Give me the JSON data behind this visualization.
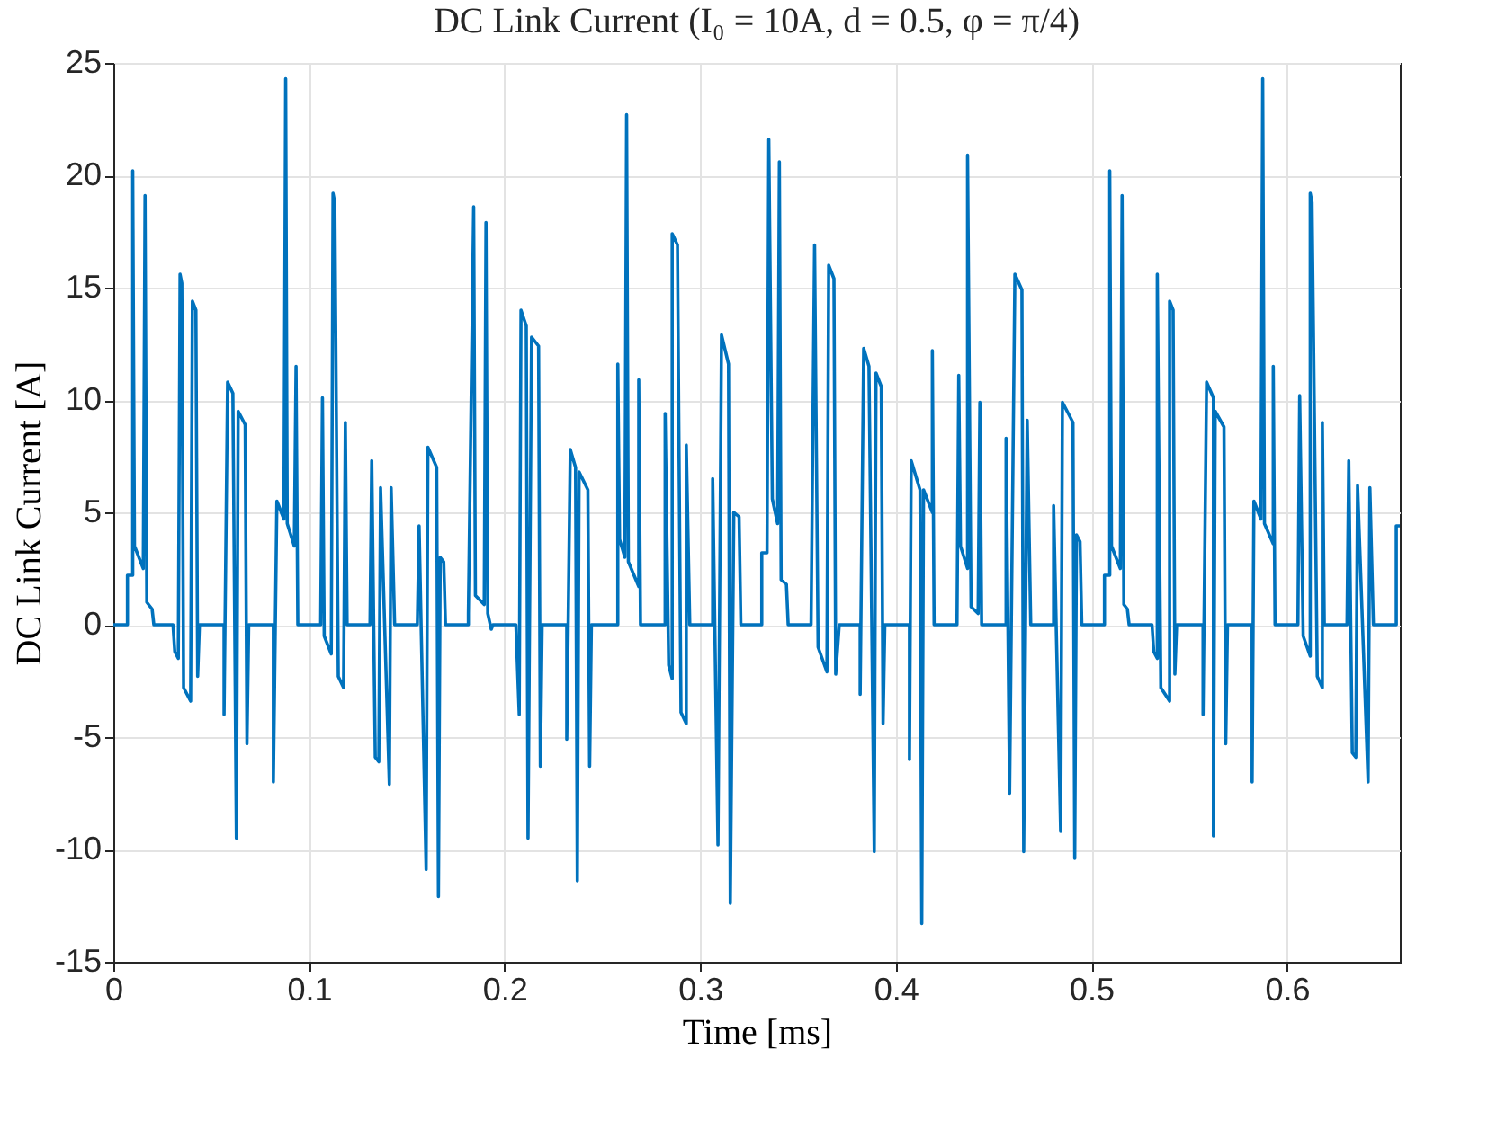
{
  "chart_data": {
    "type": "line",
    "title": "DC Link Current (I₀ = 10A, d = 0.5, φ = π/4)",
    "xlabel": "Time [ms]",
    "ylabel": "DC Link Current [A]",
    "xlim": [
      0,
      0.6577
    ],
    "ylim": [
      -15,
      25
    ],
    "xticks": [
      0,
      0.1,
      0.2,
      0.3,
      0.4,
      0.5,
      0.6
    ],
    "yticks": [
      -15,
      -10,
      -5,
      0,
      5,
      10,
      15,
      20,
      25
    ],
    "grid": true,
    "series": [
      {
        "color": "#0072bd",
        "x": [
          0,
          0.0072,
          0.0072,
          0.0099,
          0.0099,
          0.0108,
          0.0153,
          0.0162,
          0.0171,
          0.0198,
          0.0207,
          0.0305,
          0.0314,
          0.0332,
          0.0341,
          0.035,
          0.0359,
          0.0395,
          0.0404,
          0.0422,
          0.0431,
          0.044,
          0.0566,
          0.0566,
          0.0584,
          0.0611,
          0.0629,
          0.0638,
          0.0674,
          0.0683,
          0.0692,
          0.0818,
          0.0818,
          0.0836,
          0.0872,
          0.0881,
          0.0889,
          0.0925,
          0.0934,
          0.0943,
          0.106,
          0.1069,
          0.1078,
          0.1114,
          0.1123,
          0.1132,
          0.115,
          0.1177,
          0.1186,
          0.1195,
          0.1312,
          0.1321,
          0.1339,
          0.1357,
          0.1366,
          0.1411,
          0.142,
          0.1438,
          0.1554,
          0.1563,
          0.1599,
          0.1608,
          0.1653,
          0.1662,
          0.1671,
          0.1689,
          0.1698,
          0.1815,
          0.1815,
          0.1842,
          0.1851,
          0.1896,
          0.1905,
          0.1914,
          0.1932,
          0.1941,
          0.2058,
          0.2075,
          0.2084,
          0.2111,
          0.212,
          0.2138,
          0.2174,
          0.2183,
          0.2192,
          0.2318,
          0.2318,
          0.2336,
          0.2363,
          0.2372,
          0.2381,
          0.2426,
          0.2435,
          0.2444,
          0.2579,
          0.2579,
          0.2588,
          0.2615,
          0.2624,
          0.2633,
          0.2686,
          0.2686,
          0.2695,
          0.2821,
          0.2821,
          0.2839,
          0.2857,
          0.2857,
          0.2884,
          0.2902,
          0.2929,
          0.2929,
          0.2947,
          0.3064,
          0.3064,
          0.3091,
          0.3109,
          0.3145,
          0.3154,
          0.3172,
          0.3199,
          0.3208,
          0.3315,
          0.3315,
          0.3342,
          0.3351,
          0.3369,
          0.3396,
          0.3405,
          0.3414,
          0.3441,
          0.345,
          0.3567,
          0.3585,
          0.3603,
          0.3648,
          0.3657,
          0.3684,
          0.3693,
          0.3711,
          0.3818,
          0.3818,
          0.3836,
          0.3863,
          0.389,
          0.3899,
          0.3926,
          0.3935,
          0.3944,
          0.407,
          0.407,
          0.4079,
          0.4124,
          0.4133,
          0.4142,
          0.4187,
          0.4187,
          0.4196,
          0.4313,
          0.4322,
          0.4331,
          0.4367,
          0.4367,
          0.4385,
          0.4421,
          0.443,
          0.4439,
          0.4564,
          0.4564,
          0.4582,
          0.4609,
          0.4645,
          0.4654,
          0.4672,
          0.469,
          0.4807,
          0.4807,
          0.4843,
          0.4852,
          0.4906,
          0.4915,
          0.4924,
          0.4942,
          0.4951,
          0.5067,
          0.5067,
          0.5094,
          0.5094,
          0.5103,
          0.5148,
          0.5157,
          0.5166,
          0.5184,
          0.5193,
          0.531,
          0.5319,
          0.5337,
          0.5337,
          0.5355,
          0.54,
          0.54,
          0.5418,
          0.5427,
          0.5436,
          0.5571,
          0.5571,
          0.5589,
          0.5624,
          0.5624,
          0.5633,
          0.5678,
          0.5687,
          0.5696,
          0.5822,
          0.5822,
          0.5831,
          0.5867,
          0.5876,
          0.5885,
          0.593,
          0.593,
          0.5939,
          0.6056,
          0.6065,
          0.6083,
          0.6119,
          0.6119,
          0.6128,
          0.6155,
          0.6181,
          0.6181,
          0.6191,
          0.6307,
          0.6316,
          0.6334,
          0.6352,
          0.6361,
          0.6415,
          0.6424,
          0.6442,
          0.6559,
          0.6559,
          0.6577
        ],
        "values": [
          0,
          0,
          2.2,
          2.2,
          20.2,
          3.5,
          2.5,
          19.1,
          1.0,
          0.7,
          0,
          0,
          -1.2,
          -1.5,
          15.6,
          15.2,
          -2.8,
          -3.4,
          14.4,
          14.0,
          -2.3,
          0,
          0,
          -4,
          10.8,
          10.3,
          -9.5,
          9.5,
          8.9,
          -5.3,
          0,
          0,
          -7,
          5.5,
          4.7,
          24.3,
          4.5,
          3.5,
          11.5,
          0,
          0,
          10.1,
          -0.5,
          -1.3,
          19.2,
          18.8,
          -2.3,
          -2.8,
          9.0,
          0,
          0,
          7.3,
          -5.9,
          -6.1,
          6.1,
          -7.1,
          6.1,
          0,
          0,
          4.4,
          -10.9,
          7.9,
          7.0,
          -12.1,
          3.0,
          2.8,
          0,
          0,
          0.5,
          18.6,
          1.3,
          0.9,
          17.9,
          0.5,
          -0.2,
          0,
          0,
          -4,
          14.0,
          13.3,
          -9.5,
          12.8,
          12.4,
          -6.3,
          0,
          0,
          -5.1,
          7.8,
          7.0,
          -11.4,
          6.8,
          6.0,
          -6.3,
          0,
          0,
          11.6,
          3.8,
          3.0,
          22.7,
          2.8,
          1.7,
          10.9,
          0,
          0,
          9.4,
          -1.8,
          -2.4,
          17.4,
          16.9,
          -3.9,
          -4.4,
          8.0,
          0,
          0,
          6.5,
          -9.8,
          12.9,
          11.6,
          -12.4,
          5.0,
          4.8,
          0,
          0,
          3.2,
          3.2,
          21.6,
          5.6,
          4.5,
          20.6,
          2.0,
          1.8,
          0,
          0,
          16.9,
          -1.0,
          -2.1,
          16.0,
          15.4,
          -2.2,
          0,
          0,
          -3.1,
          12.3,
          11.5,
          -10.1,
          11.2,
          10.6,
          -4.4,
          0,
          0,
          -6.0,
          7.3,
          6.0,
          -13.3,
          6.0,
          5.0,
          12.2,
          0,
          0,
          11.1,
          3.5,
          2.5,
          20.9,
          0.8,
          0.5,
          9.9,
          0,
          0,
          8.3,
          -7.5,
          15.6,
          14.9,
          -10.1,
          9.1,
          0,
          0,
          5.3,
          -9.2,
          9.9,
          9.0,
          -10.4,
          4.0,
          3.7,
          0,
          0,
          2.2,
          2.2,
          20.2,
          3.5,
          2.5,
          19.1,
          0.9,
          0.7,
          0,
          0,
          -1.2,
          -1.5,
          15.6,
          -2.8,
          -3.4,
          14.4,
          14.0,
          -2.2,
          0,
          0,
          -4,
          10.8,
          10.1,
          -9.4,
          9.5,
          8.8,
          -5.3,
          0,
          0,
          -7,
          5.5,
          4.7,
          24.3,
          4.5,
          3.6,
          11.5,
          0,
          0,
          10.2,
          -0.5,
          -1.4,
          19.2,
          18.8,
          -2.3,
          -2.8,
          9.0,
          0,
          0,
          7.3,
          -5.7,
          -5.9,
          6.2,
          -7.0,
          6.1,
          0,
          0,
          4.4,
          4.4
        ]
      }
    ]
  }
}
